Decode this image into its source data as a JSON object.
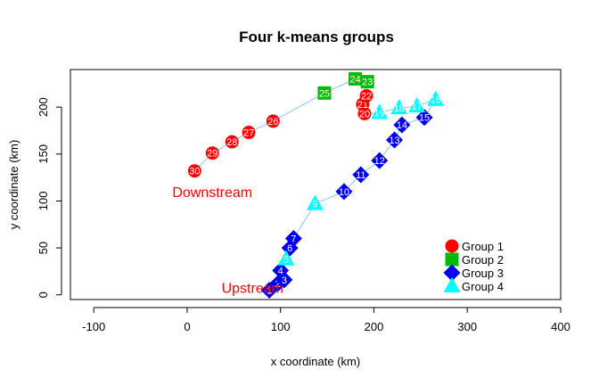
{
  "chart_data": {
    "type": "scatter",
    "title": "Four k-means groups",
    "xlabel": "x coordinate (km)",
    "ylabel": "y coordinate (km)",
    "xlim": [
      -125,
      400
    ],
    "ylim": [
      -5,
      240
    ],
    "xticks": [
      -100,
      0,
      100,
      200,
      300,
      400
    ],
    "xtick_labels": [
      "-100",
      "0",
      "100",
      "200",
      "300",
      "400"
    ],
    "yticks": [
      0,
      50,
      100,
      150,
      200
    ],
    "ytick_labels": [
      "0",
      "50",
      "100",
      "150",
      "200"
    ],
    "legend_position": "bottom-right",
    "path_color": "#8ec6e6",
    "series": [
      {
        "name": "Group 1",
        "shape": "circle",
        "color": "#ff0000",
        "points": [
          {
            "label": "20",
            "x": 190,
            "y": 193
          },
          {
            "label": "21",
            "x": 188,
            "y": 203
          },
          {
            "label": "22",
            "x": 192,
            "y": 212
          },
          {
            "label": "26",
            "x": 92,
            "y": 185
          },
          {
            "label": "27",
            "x": 66,
            "y": 173
          },
          {
            "label": "28",
            "x": 48,
            "y": 163
          },
          {
            "label": "29",
            "x": 27,
            "y": 151
          },
          {
            "label": "30",
            "x": 8,
            "y": 132
          }
        ]
      },
      {
        "name": "Group 2",
        "shape": "square",
        "color": "#00bb00",
        "points": [
          {
            "label": "23",
            "x": 193,
            "y": 227
          },
          {
            "label": "24",
            "x": 180,
            "y": 230
          },
          {
            "label": "25",
            "x": 147,
            "y": 215
          }
        ]
      },
      {
        "name": "Group 3",
        "shape": "diamond",
        "color": "#0000ee",
        "points": [
          {
            "label": "1",
            "x": 88,
            "y": 5
          },
          {
            "label": "2",
            "x": 97,
            "y": 12
          },
          {
            "label": "3",
            "x": 104,
            "y": 16
          },
          {
            "label": "4",
            "x": 100,
            "y": 26
          },
          {
            "label": "6",
            "x": 110,
            "y": 50
          },
          {
            "label": "7",
            "x": 114,
            "y": 60
          },
          {
            "label": "10",
            "x": 168,
            "y": 110
          },
          {
            "label": "11",
            "x": 186,
            "y": 128
          },
          {
            "label": "12",
            "x": 206,
            "y": 143
          },
          {
            "label": "13",
            "x": 222,
            "y": 165
          },
          {
            "label": "14",
            "x": 230,
            "y": 181
          },
          {
            "label": "15",
            "x": 254,
            "y": 189
          }
        ]
      },
      {
        "name": "Group 4",
        "shape": "triangle",
        "color": "#00ffff",
        "points": [
          {
            "label": "5",
            "x": 106,
            "y": 38
          },
          {
            "label": "9",
            "x": 137,
            "y": 97
          },
          {
            "label": "16",
            "x": 266,
            "y": 208
          },
          {
            "label": "17",
            "x": 246,
            "y": 201
          },
          {
            "label": "18",
            "x": 227,
            "y": 199
          },
          {
            "label": "19",
            "x": 206,
            "y": 194
          }
        ]
      }
    ],
    "path_order": [
      "1",
      "2",
      "3",
      "4",
      "5",
      "6",
      "7",
      "9",
      "10",
      "11",
      "12",
      "13",
      "14",
      "15",
      "16",
      "17",
      "18",
      "19",
      "20",
      "21",
      "22",
      "23",
      "24",
      "25",
      "26",
      "27",
      "28",
      "29",
      "30"
    ],
    "annotations": [
      {
        "text": "Downstream",
        "x": 27,
        "y": 110,
        "color": "#ff0000"
      },
      {
        "text": "Upstream",
        "x": 70,
        "y": 8,
        "color": "#ff0000"
      }
    ]
  }
}
